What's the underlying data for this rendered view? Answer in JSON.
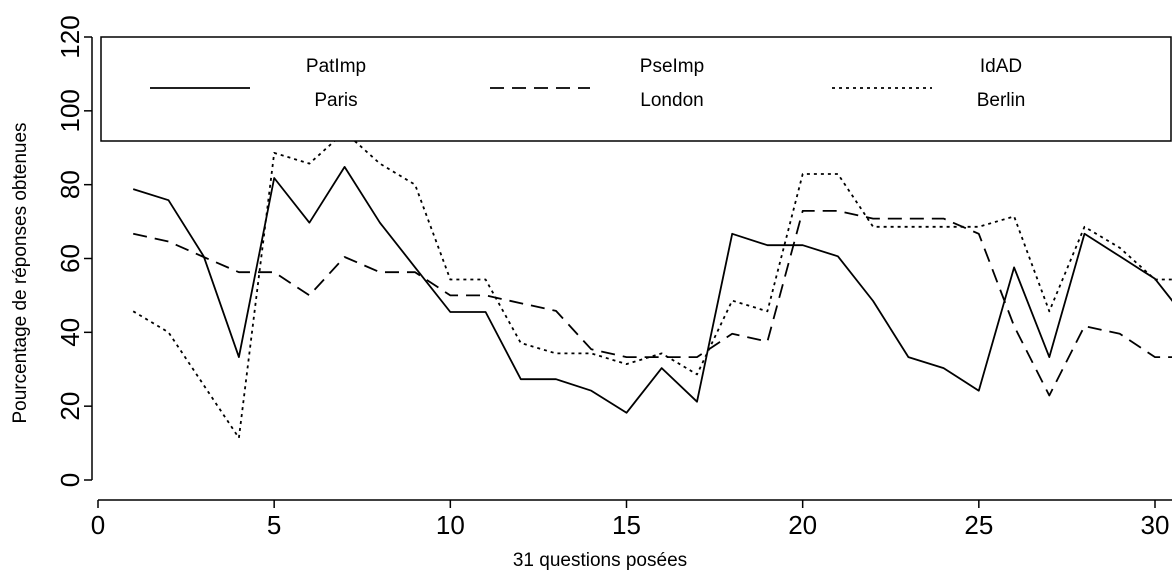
{
  "chart_data": {
    "type": "line",
    "title": "",
    "xlabel": "31 questions posées",
    "ylabel": "Pourcentage de réponses obtenues",
    "xlim": [
      0,
      31
    ],
    "ylim": [
      0,
      120
    ],
    "xticks": [
      0,
      5,
      10,
      15,
      20,
      25,
      30
    ],
    "yticks": [
      0,
      20,
      40,
      60,
      80,
      100,
      120
    ],
    "grid": false,
    "legend_position": "top",
    "x": [
      1,
      2,
      3,
      4,
      5,
      6,
      7,
      8,
      9,
      10,
      11,
      12,
      13,
      14,
      15,
      16,
      17,
      18,
      19,
      20,
      21,
      22,
      23,
      24,
      25,
      26,
      27,
      28,
      29,
      30,
      31
    ],
    "series": [
      {
        "name": "PatImp",
        "name_line2": "Paris",
        "style": "solid",
        "values": [
          78.8,
          75.8,
          60.6,
          33.3,
          81.8,
          69.7,
          84.8,
          69.7,
          57.6,
          45.5,
          45.5,
          27.3,
          27.3,
          24.2,
          18.2,
          30.3,
          21.2,
          66.7,
          63.6,
          63.6,
          60.6,
          48.5,
          33.3,
          30.3,
          24.2,
          57.6,
          33.3,
          66.7,
          60.6,
          54.5,
          42.4
        ]
      },
      {
        "name": "PseImp",
        "name_line2": "London",
        "style": "dashed",
        "values": [
          66.7,
          64.6,
          60.4,
          56.3,
          56.3,
          50.0,
          60.4,
          56.3,
          56.3,
          50.0,
          50.0,
          47.9,
          45.8,
          35.4,
          33.3,
          33.3,
          33.3,
          39.6,
          37.5,
          72.9,
          72.9,
          70.8,
          70.8,
          70.8,
          66.7,
          41.7,
          22.9,
          41.7,
          39.6,
          33.3,
          33.3
        ]
      },
      {
        "name": "IdAD",
        "name_line2": "Berlin",
        "style": "dotted",
        "values": [
          45.7,
          40.0,
          25.7,
          11.4,
          88.6,
          85.7,
          94.3,
          85.7,
          80.0,
          54.3,
          54.3,
          37.1,
          34.3,
          34.3,
          31.4,
          34.3,
          28.6,
          48.6,
          45.7,
          82.9,
          82.9,
          68.6,
          68.6,
          68.6,
          68.6,
          71.4,
          45.7,
          68.6,
          62.9,
          54.3,
          54.3
        ]
      }
    ]
  }
}
